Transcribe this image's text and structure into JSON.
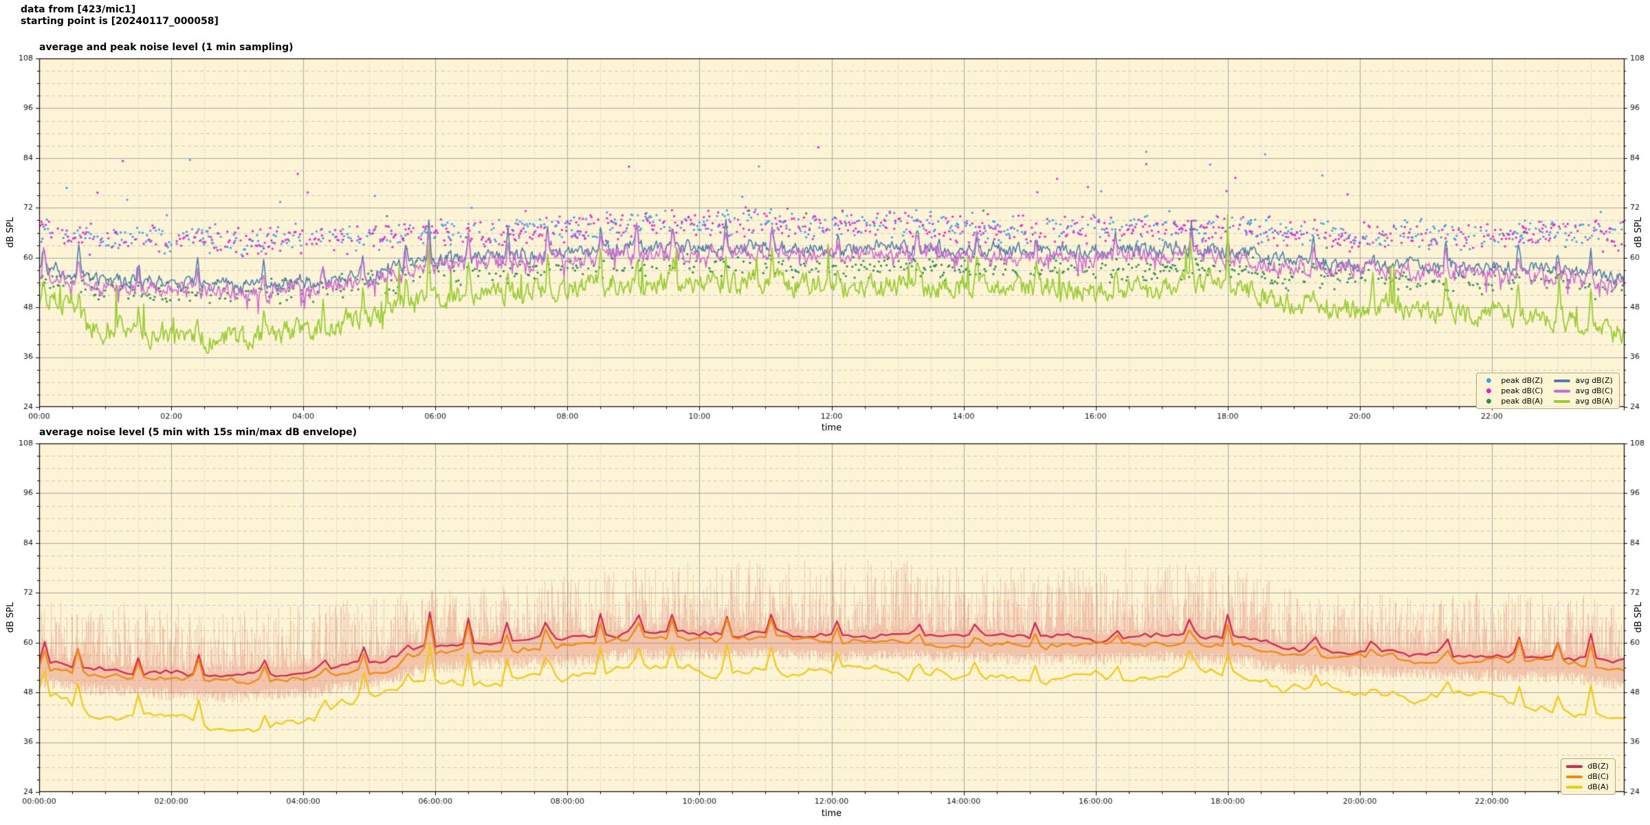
{
  "header": {
    "line1": "data from [423/mic1]",
    "line2": "starting point is [20240117_000058]"
  },
  "style": {
    "figure_bg": "#ffffff",
    "plot_bg": "#fcf4d4",
    "grid_major": "#a6a6a6",
    "grid_minor": "#c9c9c9",
    "spine": "#000000",
    "tick_text": "#111111"
  },
  "render_hints": {
    "seed": 20240117,
    "top_noise": {
      "Z": 2.6,
      "C": 3.0,
      "A": 4.4,
      "persistence": 0.55,
      "spike_sd_hours": 0.018
    },
    "bottom_noise": {
      "Z": 0.9,
      "C": 1.0,
      "A": 2.0,
      "persistence": 0.8,
      "spike_sd_hours": 0.03
    },
    "scatter_density": 0.5,
    "scatter_outlier_prob": 0.018
  },
  "chart_data": [
    {
      "type": "line+scatter",
      "title": "average and peak noise level (1 min sampling)",
      "xlabel": "time",
      "ylabel": "dB SPL",
      "ylabel_right": "dB SPL",
      "ylim": [
        24,
        108
      ],
      "yticks": [
        24,
        36,
        48,
        60,
        72,
        84,
        96,
        108
      ],
      "yminor_step": 3,
      "xlim_hours": [
        0,
        24
      ],
      "xtick_hours": [
        0,
        2,
        4,
        6,
        8,
        10,
        12,
        14,
        16,
        18,
        20,
        22
      ],
      "xtick_labels": [
        "00:00",
        "02:00",
        "04:00",
        "06:00",
        "08:00",
        "10:00",
        "12:00",
        "14:00",
        "16:00",
        "18:00",
        "20:00",
        "22:00"
      ],
      "xminor_step_hours": 0.5,
      "grid": true,
      "legend_position": "lower right",
      "legend": [
        {
          "label": "peak dB(Z)",
          "kind": "dot",
          "color": "#3f9ff0"
        },
        {
          "label": "peak dB(C)",
          "kind": "dot",
          "color": "#ee1fd0"
        },
        {
          "label": "peak dB(A)",
          "kind": "dot",
          "color": "#2e8b57"
        },
        {
          "label": "avg dB(Z)",
          "kind": "line",
          "color": "#4c7fad"
        },
        {
          "label": "avg dB(C)",
          "kind": "line",
          "color": "#d468d4"
        },
        {
          "label": "avg dB(A)",
          "kind": "line",
          "color": "#9acd32"
        }
      ],
      "sampling": "1 min",
      "series_hours": [
        0,
        1,
        2,
        3,
        4,
        5,
        6,
        7,
        8,
        9,
        10,
        11,
        12,
        13,
        14,
        15,
        16,
        17,
        18,
        19,
        20,
        21,
        22,
        23,
        24
      ],
      "series": [
        {
          "name": "avg dB(Z)",
          "kind": "line",
          "color": "#4c7fad",
          "width": 1.6,
          "hourly": [
            57.5,
            54.5,
            54,
            53.5,
            54,
            56,
            59.5,
            60.5,
            61,
            62.5,
            62.5,
            62.5,
            62,
            62.5,
            62,
            61.5,
            61.5,
            62,
            61.5,
            59,
            58.5,
            58,
            57.5,
            57,
            55.5
          ]
        },
        {
          "name": "avg dB(C)",
          "kind": "line",
          "color": "#d468d4",
          "width": 1.6,
          "hourly": [
            56,
            52.5,
            52,
            51.5,
            52.5,
            54.5,
            58,
            59,
            59.5,
            61,
            61,
            61,
            60.5,
            61,
            60.5,
            60,
            60,
            60.5,
            60,
            57.5,
            57,
            56.5,
            56,
            55,
            53.5
          ]
        },
        {
          "name": "avg dB(A)",
          "kind": "line",
          "color": "#9acd32",
          "width": 1.8,
          "hourly": [
            50,
            43,
            41,
            40,
            42,
            46,
            50.5,
            51.5,
            52.5,
            53.5,
            54,
            54,
            53.5,
            53,
            53,
            52.5,
            52,
            53,
            53.5,
            49,
            48,
            47.5,
            47,
            45,
            41
          ]
        },
        {
          "name": "peak dB(Z)",
          "kind": "scatter",
          "color": "#3f9ff0",
          "spread": 4.0,
          "hourly": [
            66,
            65,
            64.5,
            64,
            64.5,
            65.5,
            66.5,
            66.5,
            67,
            68,
            68.5,
            68.5,
            68,
            68,
            67.5,
            67,
            67,
            67.5,
            67,
            66,
            65.5,
            65.5,
            65.5,
            66,
            66
          ]
        },
        {
          "name": "peak dB(C)",
          "kind": "scatter",
          "color": "#ee1fd0",
          "spread": 4.3,
          "hourly": [
            65.5,
            64.5,
            64,
            63.5,
            64,
            65,
            66,
            66,
            66.5,
            67.5,
            68,
            68,
            67.5,
            67.5,
            67,
            66.5,
            66.5,
            67,
            66.5,
            65.5,
            65,
            65,
            65,
            65.5,
            65.5
          ]
        },
        {
          "name": "peak dB(A)",
          "kind": "scatter",
          "color": "#2e8b57",
          "spread": 3.6,
          "hourly": [
            55,
            53,
            52,
            51.5,
            52,
            54,
            56.5,
            57,
            57.5,
            58,
            58.5,
            58.5,
            58,
            58,
            57.5,
            57,
            57,
            57.5,
            57.5,
            55.5,
            55,
            54.5,
            54.5,
            54,
            53
          ]
        }
      ],
      "spike_events": [
        [
          0.07,
          5
        ],
        [
          0.6,
          6
        ],
        [
          1.5,
          4
        ],
        [
          2.4,
          5
        ],
        [
          3.4,
          4
        ],
        [
          4.3,
          4
        ],
        [
          4.9,
          5
        ],
        [
          5.55,
          4
        ],
        [
          5.9,
          9
        ],
        [
          6.5,
          6
        ],
        [
          7.1,
          5
        ],
        [
          7.7,
          7
        ],
        [
          8.5,
          5
        ],
        [
          9.05,
          7
        ],
        [
          9.6,
          5
        ],
        [
          10.4,
          6
        ],
        [
          11.1,
          5
        ],
        [
          12.1,
          4
        ],
        [
          13.3,
          4
        ],
        [
          14.2,
          4
        ],
        [
          15.1,
          4
        ],
        [
          16.3,
          4
        ],
        [
          17.45,
          7
        ],
        [
          18.0,
          5
        ],
        [
          19.3,
          4
        ],
        [
          20.2,
          4
        ],
        [
          21.3,
          6
        ],
        [
          22.4,
          5
        ],
        [
          23.0,
          4
        ],
        [
          23.5,
          6
        ]
      ]
    },
    {
      "type": "line+envelope",
      "title": "average noise level (5 min with 15s min/max dB envelope)",
      "xlabel": "time",
      "ylabel": "dB SPL",
      "ylabel_right": "dB SPL",
      "ylim": [
        24,
        108
      ],
      "yticks": [
        24,
        36,
        48,
        60,
        72,
        84,
        96,
        108
      ],
      "yminor_step": 3,
      "xlim_hours": [
        0,
        24
      ],
      "xtick_hours": [
        0,
        2,
        4,
        6,
        8,
        10,
        12,
        14,
        16,
        18,
        20,
        22
      ],
      "xtick_labels": [
        "00:00:00",
        "02:00:00",
        "04:00:00",
        "06:00:00",
        "08:00:00",
        "10:00:00",
        "12:00:00",
        "14:00:00",
        "16:00:00",
        "18:00:00",
        "20:00:00",
        "22:00:00"
      ],
      "xminor_step_hours": 0.5,
      "grid": true,
      "legend_position": "lower right",
      "legend": [
        {
          "label": "dB(Z)",
          "kind": "line",
          "color": "#d42a50"
        },
        {
          "label": "dB(C)",
          "kind": "line",
          "color": "#f28b0e"
        },
        {
          "label": "dB(A)",
          "kind": "line",
          "color": "#f3c90a"
        }
      ],
      "sampling": "5 min",
      "series_hours": [
        0,
        1,
        2,
        3,
        4,
        5,
        6,
        7,
        8,
        9,
        10,
        11,
        12,
        13,
        14,
        15,
        16,
        17,
        18,
        19,
        20,
        21,
        22,
        23,
        24
      ],
      "series": [
        {
          "name": "dB(Z)",
          "kind": "line",
          "color": "#d42a50",
          "width": 2.4,
          "hourly": [
            55.5,
            53.5,
            52.5,
            52,
            53,
            55,
            59,
            60,
            60.5,
            62,
            62,
            62.5,
            61.5,
            62,
            61.5,
            61,
            61,
            61.5,
            61,
            58.5,
            58,
            57.5,
            57,
            56.5,
            55
          ]
        },
        {
          "name": "dB(C)",
          "kind": "line",
          "color": "#f28b0e",
          "width": 2.4,
          "hourly": [
            54,
            52,
            51,
            50.5,
            51.5,
            53.5,
            57.5,
            58.5,
            59,
            60.5,
            60.5,
            61,
            60,
            60.5,
            60,
            59.5,
            59.5,
            60,
            59.5,
            57,
            56.5,
            56,
            55.5,
            55,
            53.5
          ]
        },
        {
          "name": "dB(A)",
          "kind": "line",
          "color": "#f3c90a",
          "width": 2.2,
          "hourly": [
            48.5,
            43,
            41,
            40,
            42,
            46,
            50,
            51,
            52,
            53,
            53.5,
            53.5,
            53,
            52.5,
            52.5,
            52,
            51.5,
            52.5,
            53,
            48.5,
            47.5,
            46.5,
            46.5,
            44,
            40
          ]
        }
      ],
      "envelope": {
        "color": "rgba(219,88,76,0.30)",
        "ceiling_hourly": [
          70,
          70,
          69,
          68,
          69,
          71,
          73,
          74,
          76,
          78,
          80,
          80,
          80,
          80,
          79,
          78,
          78,
          80,
          78,
          74,
          73,
          73,
          73,
          72,
          71
        ],
        "min_offset_db": 2.5
      },
      "spike_events": [
        [
          0.07,
          5
        ],
        [
          0.6,
          6
        ],
        [
          1.5,
          4
        ],
        [
          2.4,
          5
        ],
        [
          3.4,
          4
        ],
        [
          4.3,
          4
        ],
        [
          4.9,
          5
        ],
        [
          5.55,
          4
        ],
        [
          5.9,
          9
        ],
        [
          6.5,
          6
        ],
        [
          7.1,
          5
        ],
        [
          7.7,
          7
        ],
        [
          8.5,
          5
        ],
        [
          9.05,
          7
        ],
        [
          9.6,
          5
        ],
        [
          10.4,
          6
        ],
        [
          11.1,
          5
        ],
        [
          12.1,
          4
        ],
        [
          13.3,
          4
        ],
        [
          14.2,
          4
        ],
        [
          15.1,
          4
        ],
        [
          16.3,
          4
        ],
        [
          17.45,
          7
        ],
        [
          18.0,
          5
        ],
        [
          19.3,
          4
        ],
        [
          20.2,
          4
        ],
        [
          21.3,
          6
        ],
        [
          22.4,
          5
        ],
        [
          23.0,
          4
        ],
        [
          23.5,
          6
        ]
      ]
    }
  ]
}
